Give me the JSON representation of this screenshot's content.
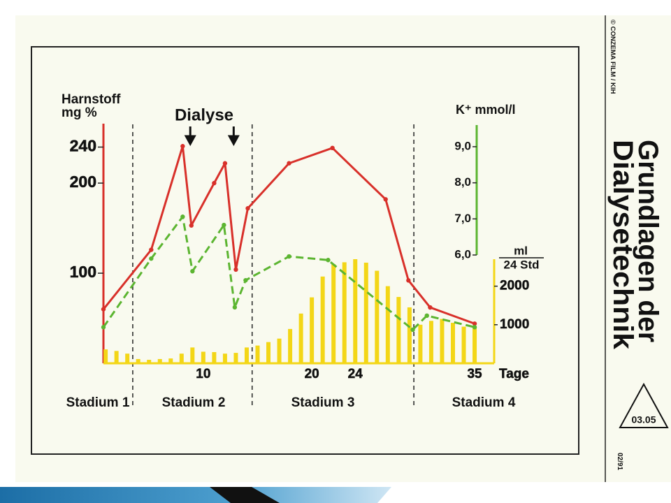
{
  "chart_data": {
    "type": "line",
    "ylabel": [
      "Harnstoff",
      "mg %"
    ],
    "y2label": "K⁺ mmol/l",
    "y3label": {
      "numerator": "ml",
      "denominator": "24 Std"
    },
    "xlabel": "Tage",
    "xlim": [
      0.8,
      36.8
    ],
    "xticks": [
      10,
      20,
      24,
      35
    ],
    "ylim": [
      0,
      266
    ],
    "yticks": [
      100,
      200,
      240
    ],
    "y2lim": [
      3,
      9.6
    ],
    "y2ticks": [
      {
        "value": 6,
        "label": "6,0"
      },
      {
        "value": 7,
        "label": "7,0"
      },
      {
        "value": 8,
        "label": "8,0"
      },
      {
        "value": 9,
        "label": "9,0"
      }
    ],
    "y3lim": [
      0,
      2700
    ],
    "y3ticks": [
      1000,
      2000
    ],
    "annotation": {
      "label": "Dialyse",
      "days": [
        8.8,
        12.8
      ]
    },
    "stages": {
      "boundaries": [
        3.5,
        14.5,
        29.4
      ],
      "labels": [
        "Stadium 1",
        "Stadium 2",
        "Stadium 3",
        "Stadium 4"
      ]
    },
    "series": [
      {
        "type": "bar",
        "axis": "y3",
        "color": "#f3d617",
        "x": [
          1,
          2,
          3,
          4,
          5,
          6,
          7,
          8,
          9,
          10,
          11,
          12,
          13,
          14,
          15,
          16,
          17,
          18,
          19,
          20,
          21,
          22,
          23,
          24,
          25,
          26,
          27,
          28,
          29,
          30,
          31,
          32,
          33,
          34,
          35
        ],
        "values": [
          360,
          320,
          250,
          110,
          90,
          110,
          125,
          250,
          410,
          300,
          290,
          250,
          270,
          410,
          460,
          550,
          640,
          890,
          1290,
          1710,
          2250,
          2570,
          2620,
          2700,
          2610,
          2400,
          2000,
          1720,
          1450,
          1000,
          1100,
          1150,
          1050,
          950,
          930
        ]
      },
      {
        "type": "line",
        "axis": "y",
        "color": "#d8302a",
        "dash": false,
        "x": [
          0.8,
          5.2,
          8.1,
          8.9,
          11.0,
          12.0,
          13.0,
          14.1,
          17.9,
          21.9,
          26.8,
          28.9,
          30.9,
          35.0
        ],
        "values": [
          60,
          126,
          241,
          153,
          200,
          222,
          104,
          172,
          222,
          239,
          182,
          92,
          62,
          44
        ]
      },
      {
        "type": "line",
        "axis": "y2",
        "color": "#5cb531",
        "dash": true,
        "x": [
          0.8,
          5.2,
          8.1,
          9.0,
          11.9,
          12.9,
          13.9,
          17.9,
          21.5,
          29.3,
          30.6,
          35.0
        ],
        "values": [
          4.0,
          5.9,
          7.06,
          5.55,
          6.83,
          4.55,
          5.3,
          5.96,
          5.86,
          3.93,
          4.32,
          4.0
        ]
      }
    ]
  },
  "side": {
    "title": [
      "Grundlagen der",
      "Dialysetechnik"
    ],
    "copyright": "© CONZEMA FILM / KIH",
    "code": "03.05",
    "date": "02/91"
  }
}
